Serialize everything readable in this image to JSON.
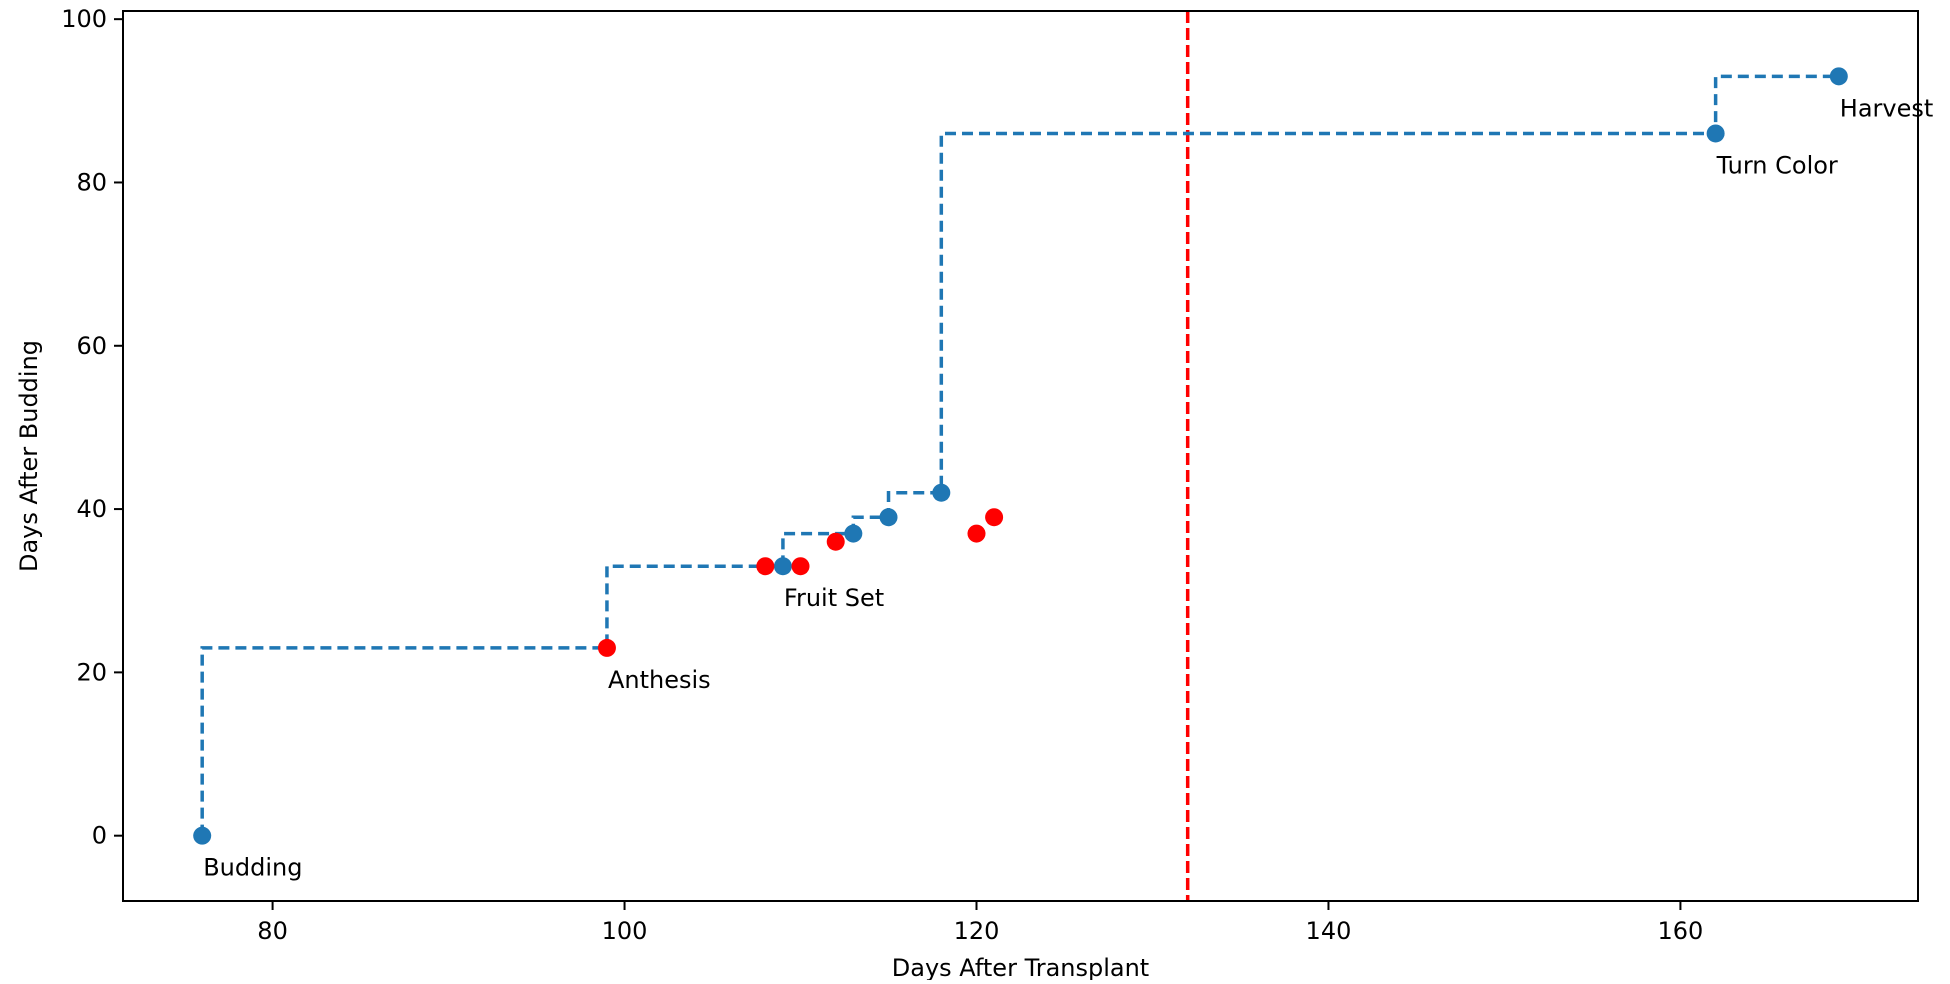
{
  "chart_data": {
    "type": "scatter",
    "title": "",
    "xlabel": "Days After Transplant",
    "ylabel": "Days After Budding",
    "xlim": [
      71.5,
      173.5
    ],
    "ylim": [
      -8,
      101
    ],
    "x_ticks": [
      80,
      100,
      120,
      140,
      160
    ],
    "y_ticks": [
      0,
      20,
      40,
      60,
      80,
      100
    ],
    "grid": false,
    "legend": "none",
    "colors": {
      "step_line": "#1f77b4",
      "stage_point": "#1f77b4",
      "event_point": "#ff0000",
      "reference_line": "#ff0000",
      "axes": "#000000"
    },
    "series": [
      {
        "style": "dashed-step",
        "color": "#1f77b4",
        "x": [
          76,
          99,
          109,
          113,
          115,
          118,
          162,
          169
        ],
        "y": [
          0,
          23,
          33,
          37,
          39,
          42,
          86,
          93
        ]
      },
      {
        "style": "points",
        "color": "#1f77b4",
        "x": [
          76,
          109,
          113,
          115,
          118,
          162,
          169
        ],
        "y": [
          0,
          33,
          37,
          39,
          42,
          86,
          93
        ]
      },
      {
        "style": "points",
        "color": "#ff0000",
        "x": [
          99,
          108,
          110,
          112,
          120,
          121
        ],
        "y": [
          23,
          33,
          33,
          36,
          37,
          39
        ]
      }
    ],
    "reference_line": {
      "orientation": "vertical",
      "x": 132,
      "style": "dashed",
      "color": "#ff0000"
    },
    "annotations": [
      {
        "text": "Budding",
        "x": 76,
        "y": 0
      },
      {
        "text": "Anthesis",
        "x": 99,
        "y": 23
      },
      {
        "text": "Fruit Set",
        "x": 109,
        "y": 33
      },
      {
        "text": "Turn Color",
        "x": 162,
        "y": 86
      },
      {
        "text": "Harvest",
        "x": 169,
        "y": 93
      }
    ]
  }
}
